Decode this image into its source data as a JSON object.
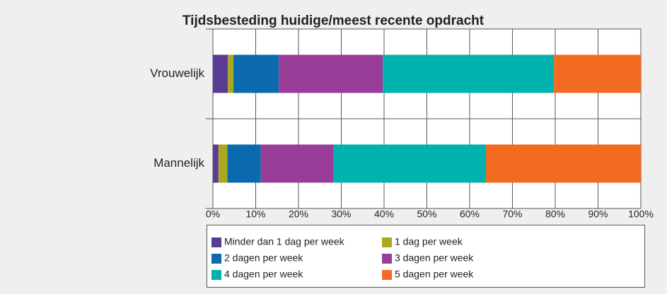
{
  "chart_data": {
    "type": "stacked-bar-horizontal",
    "title": "Tijdsbesteding huidige/meest recente opdracht",
    "categories": [
      "Vrouwelijk",
      "Mannelijk"
    ],
    "series": [
      {
        "name": "Minder dan 1 dag per week",
        "color": "#5b3a96",
        "values": [
          3.5,
          1.3
        ]
      },
      {
        "name": "1 dag per week",
        "color": "#a9a81f",
        "values": [
          1.3,
          2.1
        ]
      },
      {
        "name": "2 dagen per week",
        "color": "#0b6aad",
        "values": [
          10.6,
          7.8
        ]
      },
      {
        "name": "3 dagen per week",
        "color": "#993d98",
        "values": [
          24.3,
          16.9
        ]
      },
      {
        "name": "4 dagen per week",
        "color": "#00b2ae",
        "values": [
          40.0,
          35.7
        ]
      },
      {
        "name": "5 dagen per week",
        "color": "#f26b21",
        "values": [
          20.3,
          36.2
        ]
      }
    ],
    "xlim": [
      0,
      100
    ],
    "xticks": [
      {
        "value": 0,
        "label": "0%"
      },
      {
        "value": 10,
        "label": "10%"
      },
      {
        "value": 20,
        "label": "20%"
      },
      {
        "value": 30,
        "label": "30%"
      },
      {
        "value": 40,
        "label": "40%"
      },
      {
        "value": 50,
        "label": "50%"
      },
      {
        "value": 60,
        "label": "60%"
      },
      {
        "value": 70,
        "label": "70%"
      },
      {
        "value": 80,
        "label": "80%"
      },
      {
        "value": 90,
        "label": "90%"
      },
      {
        "value": 100,
        "label": "100%"
      }
    ],
    "grid": true
  }
}
